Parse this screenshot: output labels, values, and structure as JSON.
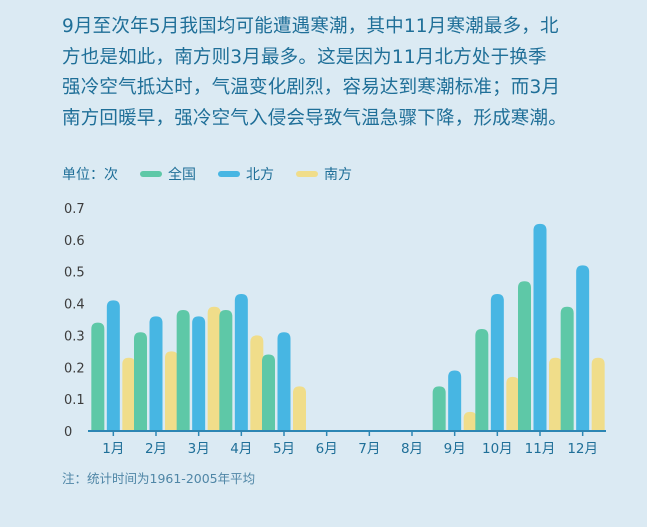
{
  "intro": {
    "line1": "9月至次年5月我国均可能遭遇寒潮，其中11月寒潮最多，北",
    "line2": "方也是如此，南方则3月最多。这是因为11月北方处于换季",
    "line3": "强冷空气抵达时，气温变化剧烈，容易达到寒潮标准；而3月",
    "line4": "南方回暖早，强冷空气入侵会导致气温急骤下降，形成寒潮。"
  },
  "legend": {
    "unit": "单位：次",
    "items": [
      {
        "label": "全国",
        "color": "#5ec8a7"
      },
      {
        "label": "北方",
        "color": "#47b6e3"
      },
      {
        "label": "南方",
        "color": "#f0dd8a"
      }
    ]
  },
  "note": "注：统计时间为1961-2005年平均",
  "chart_data": {
    "type": "bar",
    "categories": [
      "1月",
      "2月",
      "3月",
      "4月",
      "5月",
      "6月",
      "7月",
      "8月",
      "9月",
      "10月",
      "11月",
      "12月"
    ],
    "series": [
      {
        "name": "全国",
        "color": "#5ec8a7",
        "values": [
          0.34,
          0.31,
          0.38,
          0.38,
          0.24,
          0,
          0,
          0,
          0.14,
          0.32,
          0.47,
          0.39
        ]
      },
      {
        "name": "北方",
        "color": "#47b6e3",
        "values": [
          0.41,
          0.36,
          0.36,
          0.43,
          0.31,
          0,
          0,
          0,
          0.19,
          0.43,
          0.65,
          0.52
        ]
      },
      {
        "name": "南方",
        "color": "#f0dd8a",
        "values": [
          0.23,
          0.25,
          0.39,
          0.3,
          0.14,
          0,
          0,
          0,
          0.06,
          0.17,
          0.23,
          0.23
        ]
      }
    ],
    "yticks": [
      "0",
      "0.1",
      "0.2",
      "0.3",
      "0.4",
      "0.5",
      "0.6",
      "0.7"
    ],
    "ylim": [
      0,
      0.7
    ]
  }
}
